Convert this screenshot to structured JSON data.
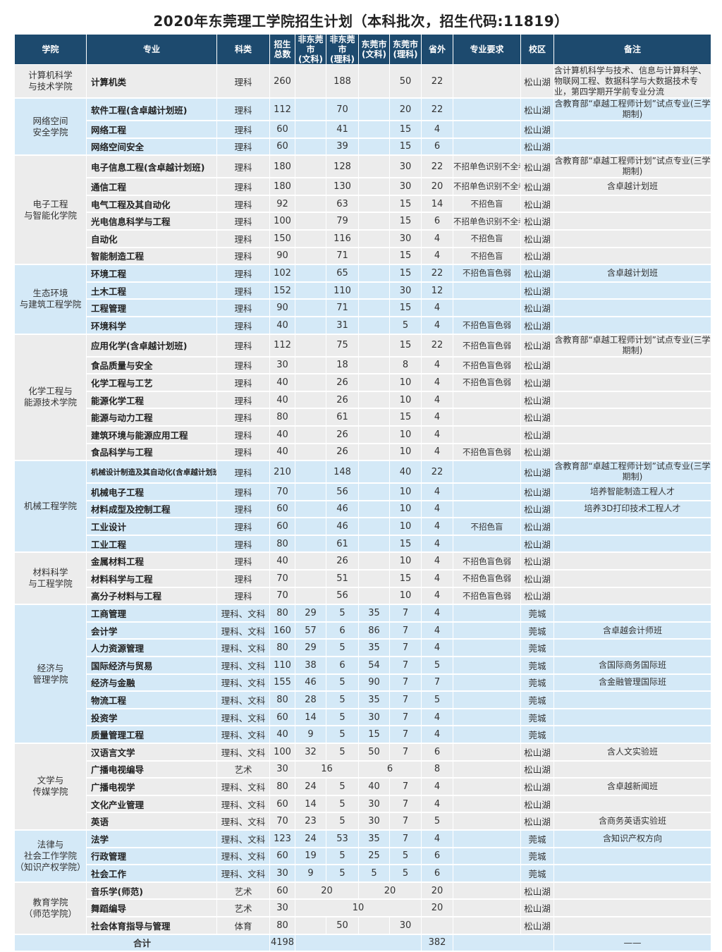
{
  "title": "2020年东莞理工学院招生计划（本科批次，招生代码:11819）",
  "headers": [
    "学院",
    "专业",
    "科类",
    "招生\n总数",
    "非东莞市\n(文科)",
    "非东莞市\n(理科)",
    "东莞市\n(文科)",
    "东莞市\n(理科)",
    "省外",
    "专业要求",
    "校区",
    "备注"
  ],
  "colors": {
    "header_bg": "#1d4a6e",
    "band_gray": "#ececec",
    "band_blue": "#d4e9f7"
  },
  "colleges": [
    {
      "name": "计算机科学\n与技术学院",
      "rows": [
        [
          "计算机类",
          "理科",
          "260",
          [
            "",
            "188",
            "",
            "50"
          ],
          "22",
          "",
          "松山湖",
          "含计算机科学与技术、信息与计算科学、物联网工程、数据科学与大数据技术专业，第四学期开学前专业分流"
        ]
      ]
    },
    {
      "name": "网络空间\n安全学院",
      "rows": [
        [
          "软件工程(含卓越计划班)",
          "理科",
          "112",
          [
            "",
            "70",
            "",
            "20"
          ],
          "22",
          "",
          "松山湖",
          "含教育部“卓越工程师计划”试点专业(三学期制)"
        ],
        [
          "网络工程",
          "理科",
          "60",
          [
            "",
            "41",
            "",
            "15"
          ],
          "4",
          "",
          "松山湖",
          ""
        ],
        [
          "网络空间安全",
          "理科",
          "60",
          [
            "",
            "39",
            "",
            "15"
          ],
          "6",
          "",
          "松山湖",
          ""
        ]
      ]
    },
    {
      "name": "电子工程\n与智能化学院",
      "rows": [
        [
          "电子信息工程(含卓越计划班)",
          "理科",
          "180",
          [
            "",
            "128",
            "",
            "30"
          ],
          "22",
          "不招单色识别不全者",
          "松山湖",
          "含教育部“卓越工程师计划”试点专业(三学期制)"
        ],
        [
          "通信工程",
          "理科",
          "180",
          [
            "",
            "130",
            "",
            "30"
          ],
          "20",
          "不招单色识别不全者",
          "松山湖",
          "含卓越计划班"
        ],
        [
          "电气工程及其自动化",
          "理科",
          "92",
          [
            "",
            "63",
            "",
            "15"
          ],
          "14",
          "不招色盲",
          "松山湖",
          ""
        ],
        [
          "光电信息科学与工程",
          "理科",
          "100",
          [
            "",
            "79",
            "",
            "15"
          ],
          "6",
          "不招单色识别不全者",
          "松山湖",
          ""
        ],
        [
          "自动化",
          "理科",
          "150",
          [
            "",
            "116",
            "",
            "30"
          ],
          "4",
          "不招色盲",
          "松山湖",
          ""
        ],
        [
          "智能制造工程",
          "理科",
          "90",
          [
            "",
            "71",
            "",
            "15"
          ],
          "4",
          "不招色盲",
          "松山湖",
          ""
        ]
      ]
    },
    {
      "name": "生态环境\n与建筑工程学院",
      "rows": [
        [
          "环境工程",
          "理科",
          "102",
          [
            "",
            "65",
            "",
            "15"
          ],
          "22",
          "不招色盲色弱",
          "松山湖",
          "含卓越计划班"
        ],
        [
          "土木工程",
          "理科",
          "152",
          [
            "",
            "110",
            "",
            "30"
          ],
          "12",
          "",
          "松山湖",
          ""
        ],
        [
          "工程管理",
          "理科",
          "90",
          [
            "",
            "71",
            "",
            "15"
          ],
          "4",
          "",
          "松山湖",
          ""
        ],
        [
          "环境科学",
          "理科",
          "40",
          [
            "",
            "31",
            "",
            "5"
          ],
          "4",
          "不招色盲色弱",
          "松山湖",
          ""
        ]
      ]
    },
    {
      "name": "化学工程与\n能源技术学院",
      "rows": [
        [
          "应用化学(含卓越计划班)",
          "理科",
          "112",
          [
            "",
            "75",
            "",
            "15"
          ],
          "22",
          "不招色盲色弱",
          "松山湖",
          "含教育部“卓越工程师计划”试点专业(三学期制)"
        ],
        [
          "食品质量与安全",
          "理科",
          "30",
          [
            "",
            "18",
            "",
            "8"
          ],
          "4",
          "不招色盲色弱",
          "松山湖",
          ""
        ],
        [
          "化学工程与工艺",
          "理科",
          "40",
          [
            "",
            "26",
            "",
            "10"
          ],
          "4",
          "不招色盲色弱",
          "松山湖",
          ""
        ],
        [
          "能源化学工程",
          "理科",
          "40",
          [
            "",
            "26",
            "",
            "10"
          ],
          "4",
          "",
          "松山湖",
          ""
        ],
        [
          "能源与动力工程",
          "理科",
          "80",
          [
            "",
            "61",
            "",
            "15"
          ],
          "4",
          "",
          "松山湖",
          ""
        ],
        [
          "建筑环境与能源应用工程",
          "理科",
          "40",
          [
            "",
            "26",
            "",
            "10"
          ],
          "4",
          "",
          "松山湖",
          ""
        ],
        [
          "食品科学与工程",
          "理科",
          "40",
          [
            "",
            "26",
            "",
            "10"
          ],
          "4",
          "不招色盲色弱",
          "松山湖",
          ""
        ]
      ]
    },
    {
      "name": "机械工程学院",
      "rows": [
        [
          "机械设计制造及其自动化(含卓越计划班)",
          "理科",
          "210",
          [
            "",
            "148",
            "",
            "40"
          ],
          "22",
          "",
          "松山湖",
          "含教育部“卓越工程师计划”试点专业(三学期制)"
        ],
        [
          "机械电子工程",
          "理科",
          "70",
          [
            "",
            "56",
            "",
            "10"
          ],
          "4",
          "",
          "松山湖",
          "培养智能制造工程人才"
        ],
        [
          "材料成型及控制工程",
          "理科",
          "60",
          [
            "",
            "46",
            "",
            "10"
          ],
          "4",
          "",
          "松山湖",
          "培养3D打印技术工程人才"
        ],
        [
          "工业设计",
          "理科",
          "60",
          [
            "",
            "46",
            "",
            "10"
          ],
          "4",
          "不招色盲",
          "松山湖",
          ""
        ],
        [
          "工业工程",
          "理科",
          "80",
          [
            "",
            "61",
            "",
            "15"
          ],
          "4",
          "",
          "松山湖",
          ""
        ]
      ]
    },
    {
      "name": "材料科学\n与工程学院",
      "rows": [
        [
          "金属材料工程",
          "理科",
          "40",
          [
            "",
            "26",
            "",
            "10"
          ],
          "4",
          "不招色盲色弱",
          "松山湖",
          ""
        ],
        [
          "材料科学与工程",
          "理科",
          "70",
          [
            "",
            "51",
            "",
            "15"
          ],
          "4",
          "不招色盲色弱",
          "松山湖",
          ""
        ],
        [
          "高分子材料与工程",
          "理科",
          "70",
          [
            "",
            "56",
            "",
            "10"
          ],
          "4",
          "不招色盲色弱",
          "松山湖",
          ""
        ]
      ]
    },
    {
      "name": "经济与\n管理学院",
      "rows": [
        [
          "工商管理",
          "理科、文科",
          "80",
          [
            "29",
            "5",
            "35",
            "7"
          ],
          "4",
          "",
          "莞城",
          ""
        ],
        [
          "会计学",
          "理科、文科",
          "160",
          [
            "57",
            "6",
            "86",
            "7"
          ],
          "4",
          "",
          "莞城",
          "含卓越会计师班"
        ],
        [
          "人力资源管理",
          "理科、文科",
          "80",
          [
            "29",
            "5",
            "35",
            "7"
          ],
          "4",
          "",
          "莞城",
          ""
        ],
        [
          "国际经济与贸易",
          "理科、文科",
          "110",
          [
            "38",
            "6",
            "54",
            "7"
          ],
          "5",
          "",
          "莞城",
          "含国际商务国际班"
        ],
        [
          "经济与金融",
          "理科、文科",
          "155",
          [
            "46",
            "5",
            "90",
            "7"
          ],
          "7",
          "",
          "莞城",
          "含金融管理国际班"
        ],
        [
          "物流工程",
          "理科、文科",
          "80",
          [
            "28",
            "5",
            "35",
            "7"
          ],
          "5",
          "",
          "莞城",
          ""
        ],
        [
          "投资学",
          "理科、文科",
          "60",
          [
            "14",
            "5",
            "30",
            "7"
          ],
          "4",
          "",
          "莞城",
          ""
        ],
        [
          "质量管理工程",
          "理科、文科",
          "40",
          [
            "9",
            "5",
            "15",
            "7"
          ],
          "4",
          "",
          "莞城",
          ""
        ]
      ]
    },
    {
      "name": "文学与\n传媒学院",
      "rows": [
        [
          "汉语言文学",
          "理科、文科",
          "100",
          [
            "32",
            "5",
            "50",
            "7"
          ],
          "6",
          "",
          "松山湖",
          "含人文实验班"
        ],
        [
          "广播电视编导",
          "艺术",
          "30",
          [
            {
              "v": "16",
              "span": 2
            },
            {
              "v": "6",
              "span": 2
            }
          ],
          "8",
          "",
          "松山湖",
          ""
        ],
        [
          "广播电视学",
          "理科、文科",
          "80",
          [
            "24",
            "5",
            "40",
            "7"
          ],
          "4",
          "",
          "松山湖",
          "含卓越新闻班"
        ],
        [
          "文化产业管理",
          "理科、文科",
          "60",
          [
            "14",
            "5",
            "30",
            "7"
          ],
          "4",
          "",
          "松山湖",
          ""
        ],
        [
          "英语",
          "理科、文科",
          "70",
          [
            "23",
            "5",
            "30",
            "7"
          ],
          "5",
          "",
          "松山湖",
          "含商务英语实验班"
        ]
      ]
    },
    {
      "name": "法律与\n社会工作学院\n（知识产权学院）",
      "rows": [
        [
          "法学",
          "理科、文科",
          "123",
          [
            "24",
            "53",
            "35",
            "7"
          ],
          "4",
          "",
          "莞城",
          "含知识产权方向"
        ],
        [
          "行政管理",
          "理科、文科",
          "60",
          [
            "19",
            "5",
            "25",
            "5"
          ],
          "6",
          "",
          "莞城",
          ""
        ],
        [
          "社会工作",
          "理科、文科",
          "30",
          [
            "9",
            "5",
            "5",
            "5"
          ],
          "6",
          "",
          "莞城",
          ""
        ]
      ]
    },
    {
      "name": "教育学院\n（师范学院）",
      "rows": [
        [
          "音乐学(师范)",
          "艺术",
          "60",
          [
            {
              "v": "20",
              "span": 2
            },
            {
              "v": "20",
              "span": 2
            }
          ],
          "20",
          "",
          "松山湖",
          ""
        ],
        [
          "舞蹈编导",
          "艺术",
          "30",
          [
            {
              "v": "10",
              "span": 4
            }
          ],
          "20",
          "",
          "松山湖",
          ""
        ],
        [
          "社会体育指导与管理",
          "体育",
          "80",
          [
            "",
            "50",
            "",
            "30"
          ],
          "",
          "",
          "松山湖",
          ""
        ]
      ]
    }
  ],
  "total": {
    "label": "合计",
    "total": "4198",
    "out": "382",
    "note": "——"
  }
}
